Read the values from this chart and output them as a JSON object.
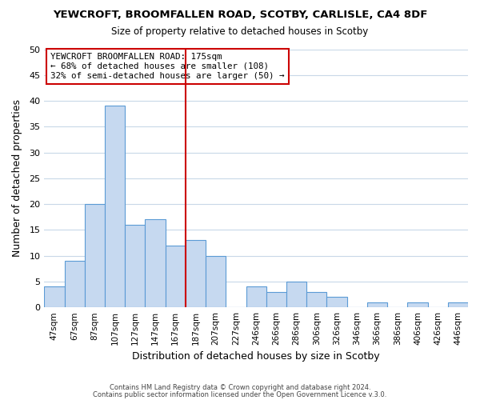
{
  "title": "YEWCROFT, BROOMFALLEN ROAD, SCOTBY, CARLISLE, CA4 8DF",
  "subtitle": "Size of property relative to detached houses in Scotby",
  "xlabel": "Distribution of detached houses by size in Scotby",
  "ylabel": "Number of detached properties",
  "bar_labels": [
    "47sqm",
    "67sqm",
    "87sqm",
    "107sqm",
    "127sqm",
    "147sqm",
    "167sqm",
    "187sqm",
    "207sqm",
    "227sqm",
    "246sqm",
    "266sqm",
    "286sqm",
    "306sqm",
    "326sqm",
    "346sqm",
    "366sqm",
    "386sqm",
    "406sqm",
    "426sqm",
    "446sqm"
  ],
  "bar_values": [
    4,
    9,
    20,
    39,
    16,
    17,
    12,
    13,
    10,
    0,
    4,
    3,
    5,
    3,
    2,
    0,
    1,
    0,
    1,
    0,
    1
  ],
  "bar_color": "#c6d9f0",
  "bar_edge_color": "#5b9bd5",
  "vline_color": "#cc0000",
  "annotation_text": "YEWCROFT BROOMFALLEN ROAD: 175sqm\n← 68% of detached houses are smaller (108)\n32% of semi-detached houses are larger (50) →",
  "annotation_box_edge": "#cc0000",
  "ylim": [
    0,
    50
  ],
  "yticks": [
    0,
    5,
    10,
    15,
    20,
    25,
    30,
    35,
    40,
    45,
    50
  ],
  "footer1": "Contains HM Land Registry data © Crown copyright and database right 2024.",
  "footer2": "Contains public sector information licensed under the Open Government Licence v.3.0.",
  "bg_color": "#ffffff",
  "grid_color": "#c8d8e8"
}
